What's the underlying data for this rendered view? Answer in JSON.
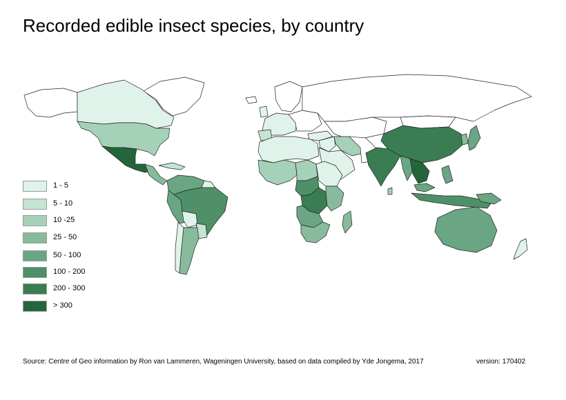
{
  "title": "Recorded edible insect species, by country",
  "legend": [
    {
      "label": "1 -  5",
      "color": "#dff3ea"
    },
    {
      "label": "5 - 10",
      "color": "#c4e5d3"
    },
    {
      "label": "10 -25",
      "color": "#a6d1b9"
    },
    {
      "label": "25 - 50",
      "color": "#87bb9c"
    },
    {
      "label": "50 - 100",
      "color": "#6aa684"
    },
    {
      "label": "100 - 200",
      "color": "#4f9068"
    },
    {
      "label": "200 - 300",
      "color": "#3a7d52"
    },
    {
      "label": "> 300",
      "color": "#24653b"
    }
  ],
  "no_data_color": "#ffffff",
  "source": "Source: Centre of Geo information by Ron van Lammeren, Wageningen University, based on data compiled by Yde Jongema, 2017",
  "version": "version: 170402"
}
